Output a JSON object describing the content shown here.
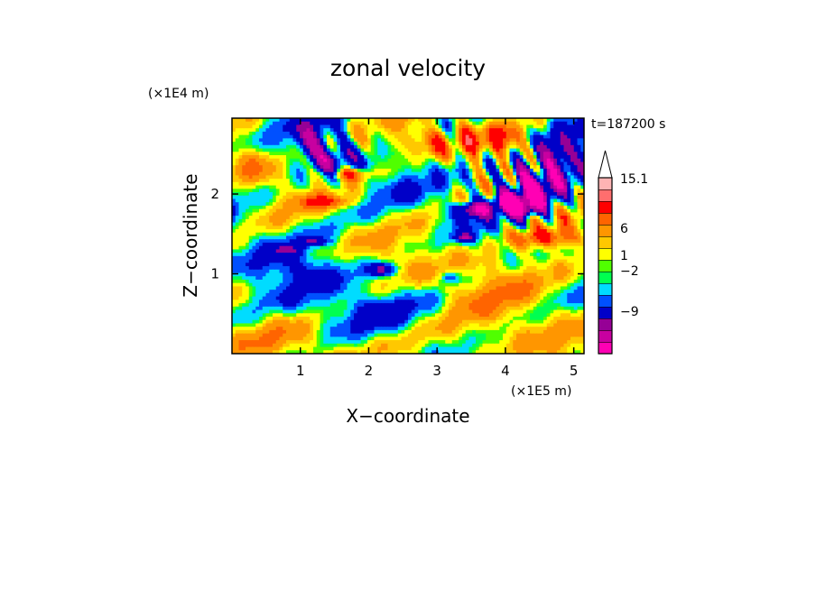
{
  "chart_data": {
    "type": "heatmap",
    "title": "zonal velocity",
    "xlabel": "X−coordinate",
    "ylabel": "Z−coordinate",
    "x_unit": "(×1E5 m)",
    "y_unit": "(×1E4 m)",
    "time_label": "t=187200 s",
    "xlim": [
      0,
      5.15
    ],
    "ylim": [
      0,
      2.95
    ],
    "x_ticks": [
      1,
      2,
      3,
      4,
      5
    ],
    "y_ticks": [
      1,
      2
    ],
    "x_tick_labels": [
      "1",
      "2",
      "3",
      "4",
      "5"
    ],
    "y_tick_labels": [
      "1",
      "2"
    ],
    "colorbar": {
      "labels": [
        {
          "text": "15.1",
          "value": 15.1
        },
        {
          "text": "6",
          "value": 6
        },
        {
          "text": "1",
          "value": 1
        },
        {
          "text": "−2",
          "value": -2
        },
        {
          "text": "−9",
          "value": -9
        }
      ],
      "colors": [
        "#ff00b4",
        "#c800a0",
        "#960096",
        "#0000c8",
        "#0050ff",
        "#00dcff",
        "#00ff50",
        "#50ff00",
        "#ffff00",
        "#ffc800",
        "#ff9600",
        "#ff6400",
        "#ff0000",
        "#ff6e6e",
        "#ffb4b4"
      ],
      "extend": "max",
      "extend_color": "#ffffff"
    },
    "features": [
      {
        "x": 2.0,
        "z": 0.15,
        "value": 1.5,
        "sx": 3.5,
        "sz": 0.35
      },
      {
        "x": 4.2,
        "z": 0.9,
        "value": 2.5,
        "sx": 1.8,
        "sz": 0.6
      },
      {
        "x": 1.2,
        "z": 1.05,
        "value": -2.0,
        "sx": 0.9,
        "sz": 0.2
      },
      {
        "x": 2.6,
        "z": 0.55,
        "value": -1.8,
        "sx": 1.2,
        "sz": 0.3
      },
      {
        "x": 1.3,
        "z": 0.55,
        "value": -1.2,
        "sx": 1.0,
        "sz": 0.3
      },
      {
        "x": 0.8,
        "z": 1.3,
        "value": -4.0,
        "sx": 0.2,
        "sz": 0.05
      },
      {
        "x": 1.2,
        "z": 1.4,
        "value": -5.0,
        "sx": 0.2,
        "sz": 0.05
      },
      {
        "x": 2.2,
        "z": 1.05,
        "value": -6.5,
        "sx": 0.18,
        "sz": 0.08
      },
      {
        "x": 3.2,
        "z": 0.95,
        "value": -4.0,
        "sx": 0.15,
        "sz": 0.08
      },
      {
        "x": 3.5,
        "z": 1.8,
        "value": -8.0,
        "sx": 0.3,
        "sz": 0.1
      },
      {
        "x": 4.1,
        "z": 1.9,
        "value": -9.5,
        "sx": 0.3,
        "sz": 0.12
      },
      {
        "x": 4.4,
        "z": 2.1,
        "value": -9.0,
        "sx": 0.45,
        "sz": 0.3
      },
      {
        "x": 4.8,
        "z": 2.5,
        "value": -6.0,
        "sx": 0.4,
        "sz": 0.3
      },
      {
        "x": 3.4,
        "z": 1.45,
        "value": -6.0,
        "sx": 0.15,
        "sz": 0.06
      },
      {
        "x": 4.3,
        "z": 1.8,
        "value": -5.0,
        "sx": 0.2,
        "sz": 0.08
      },
      {
        "x": 1.2,
        "z": 2.6,
        "value": -6.0,
        "sx": 0.25,
        "sz": 0.25
      },
      {
        "x": 1.5,
        "z": 2.4,
        "value": -5.0,
        "sx": 0.2,
        "sz": 0.2
      },
      {
        "x": 1.7,
        "z": 2.25,
        "value": 5.0,
        "sx": 0.35,
        "sz": 0.08
      },
      {
        "x": 1.4,
        "z": 1.9,
        "value": 4.0,
        "sx": 0.4,
        "sz": 0.08
      },
      {
        "x": 4.6,
        "z": 1.45,
        "value": 5.5,
        "sx": 0.5,
        "sz": 0.12
      },
      {
        "x": 2.8,
        "z": 2.65,
        "value": 3.5,
        "sx": 0.7,
        "sz": 0.2
      },
      {
        "x": 3.9,
        "z": 2.7,
        "value": 4.5,
        "sx": 0.5,
        "sz": 0.2
      },
      {
        "x": 0.3,
        "z": 2.35,
        "value": 3.0,
        "sx": 0.3,
        "sz": 0.25
      }
    ]
  }
}
